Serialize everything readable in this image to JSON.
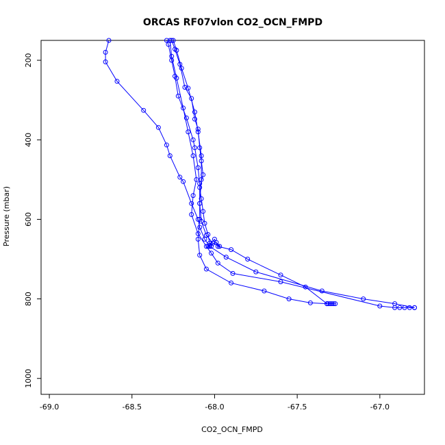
{
  "chart_data": {
    "type": "line",
    "title": "ORCAS RF07vlon CO2_OCN_FMPD",
    "xlabel": "CO2_OCN_FMPD",
    "ylabel": "Pressure (mbar)",
    "xlim": [
      -69.05,
      -66.73
    ],
    "ylim": [
      1040,
      150
    ],
    "y_inverted": true,
    "xticks": [
      -69.0,
      -68.5,
      -68.0,
      -67.5,
      -67.0
    ],
    "xtick_labels": [
      "-69.0",
      "-68.5",
      "-68.0",
      "-67.5",
      "-67.0"
    ],
    "yticks": [
      200,
      400,
      600,
      800,
      1000
    ],
    "ytick_labels": [
      "200",
      "400",
      "600",
      "800",
      "1000"
    ],
    "grid": false,
    "series_color": "#0000ff",
    "marker": "open-circle",
    "series": [
      {
        "points": [
          [
            -68.64,
            150
          ],
          [
            -68.66,
            180
          ],
          [
            -68.66,
            204
          ],
          [
            -68.59,
            253
          ],
          [
            -68.43,
            326
          ],
          [
            -68.34,
            369
          ],
          [
            -68.29,
            413
          ],
          [
            -68.27,
            440
          ],
          [
            -68.21,
            494
          ],
          [
            -68.19,
            505
          ],
          [
            -68.14,
            560
          ],
          [
            -68.1,
            600
          ],
          [
            -68.09,
            620
          ],
          [
            -68.06,
            650
          ],
          [
            -68.03,
            668
          ],
          [
            -67.93,
            695
          ],
          [
            -67.75,
            732
          ],
          [
            -67.35,
            780
          ],
          [
            -67.1,
            800
          ],
          [
            -66.91,
            812
          ],
          [
            -66.79,
            822
          ]
        ]
      },
      {
        "points": [
          [
            -66.79,
            822
          ],
          [
            -66.82,
            822
          ],
          [
            -66.85,
            822
          ],
          [
            -66.88,
            822
          ],
          [
            -66.91,
            822
          ],
          [
            -67.0,
            818
          ],
          [
            -67.6,
            757
          ],
          [
            -67.89,
            736
          ],
          [
            -67.98,
            710
          ],
          [
            -68.02,
            685
          ],
          [
            -68.05,
            668
          ],
          [
            -68.1,
            636
          ],
          [
            -68.14,
            588
          ],
          [
            -68.13,
            540
          ],
          [
            -68.11,
            500
          ],
          [
            -68.13,
            440
          ],
          [
            -68.16,
            380
          ],
          [
            -68.19,
            320
          ],
          [
            -68.23,
            245
          ],
          [
            -68.26,
            190
          ],
          [
            -68.27,
            150
          ]
        ]
      },
      {
        "points": [
          [
            -68.26,
            150
          ],
          [
            -68.24,
            172
          ],
          [
            -68.21,
            210
          ],
          [
            -68.18,
            268
          ],
          [
            -68.14,
            296
          ],
          [
            -68.12,
            348
          ],
          [
            -68.1,
            373
          ],
          [
            -68.09,
            420
          ],
          [
            -68.08,
            453
          ],
          [
            -68.07,
            488
          ],
          [
            -68.09,
            520
          ],
          [
            -68.08,
            548
          ],
          [
            -68.07,
            580
          ],
          [
            -68.06,
            610
          ],
          [
            -68.04,
            638
          ],
          [
            -68.03,
            660
          ],
          [
            -68.02,
            668
          ]
        ]
      },
      {
        "points": [
          [
            -68.04,
            668
          ],
          [
            -68.0,
            650
          ],
          [
            -67.98,
            668
          ],
          [
            -67.9,
            676
          ],
          [
            -67.8,
            700
          ],
          [
            -67.6,
            740
          ],
          [
            -67.45,
            770
          ],
          [
            -67.32,
            812
          ]
        ]
      },
      {
        "points": [
          [
            -67.27,
            812
          ],
          [
            -67.28,
            812
          ],
          [
            -67.29,
            812
          ],
          [
            -67.3,
            812
          ],
          [
            -67.31,
            812
          ],
          [
            -67.32,
            812
          ],
          [
            -67.42,
            810
          ],
          [
            -67.55,
            800
          ],
          [
            -67.7,
            780
          ],
          [
            -67.9,
            760
          ],
          [
            -68.05,
            725
          ],
          [
            -68.09,
            690
          ],
          [
            -68.1,
            650
          ],
          [
            -68.09,
            600
          ],
          [
            -68.09,
            560
          ],
          [
            -68.09,
            510
          ],
          [
            -68.1,
            470
          ],
          [
            -68.12,
            420
          ],
          [
            -68.13,
            400
          ],
          [
            -68.17,
            345
          ],
          [
            -68.22,
            290
          ],
          [
            -68.24,
            240
          ],
          [
            -68.26,
            200
          ],
          [
            -68.28,
            160
          ],
          [
            -68.29,
            150
          ]
        ]
      },
      {
        "points": [
          [
            -68.25,
            150
          ],
          [
            -68.23,
            175
          ],
          [
            -68.2,
            220
          ],
          [
            -68.16,
            270
          ],
          [
            -68.12,
            330
          ],
          [
            -68.1,
            380
          ],
          [
            -68.08,
            440
          ],
          [
            -68.08,
            500
          ],
          [
            -68.09,
            560
          ],
          [
            -68.08,
            605
          ],
          [
            -68.05,
            640
          ],
          [
            -68.01,
            660
          ],
          [
            -67.97,
            668
          ],
          [
            -67.99,
            658
          ],
          [
            -68.03,
            665
          ]
        ]
      }
    ]
  }
}
